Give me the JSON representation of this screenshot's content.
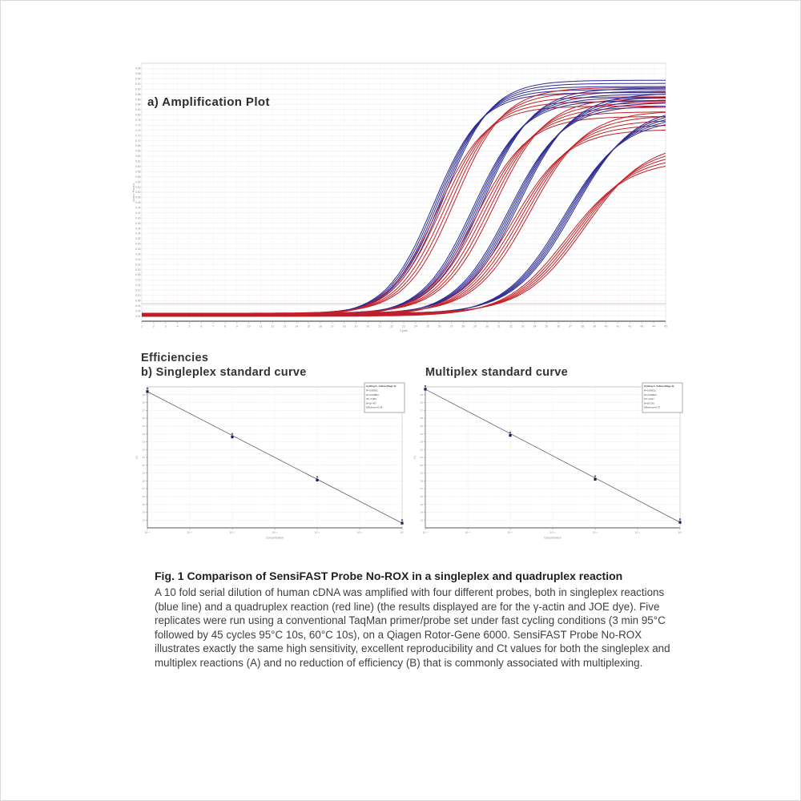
{
  "figure": {
    "caption": {
      "title": "Fig. 1 Comparison of SensiFAST Probe No-ROX in a singleplex and quadruplex reaction",
      "body": "A 10 fold serial dilution of human cDNA was amplified with four different probes, both in singleplex reactions (blue line) and a quadruplex reaction (red line) (the results displayed are for the γ-actin and JOE dye).  Five replicates were run using a conventional TaqMan primer/probe set under fast cycling conditions (3 min 95°C followed by 45 cycles 95°C 10s, 60°C 10s), on a Qiagen Rotor-Gene 6000. SensiFAST Probe No-ROX illustrates exactly the same high sensitivity, excellent reproducibility and Ct values for both the singleplex and multiplex reactions (A) and no reduction of efficiency (B) that is commonly associated with multiplexing."
    },
    "efficiencies_heading": "Efficiencies"
  },
  "colors": {
    "singleplex_blue": "#2b2b93",
    "multiplex_red": "#c42026",
    "threshold_line": "#e2a9a9",
    "grid_light": "#ebedf2",
    "grid_std": "#dcdcdc",
    "axis_dark": "#8a8a8a",
    "point_marker": "#1c1c55"
  },
  "chart_data": [
    {
      "type": "line",
      "title": "a) Amplification Plot",
      "xlabel": "Cycle",
      "ylabel": "Norm. Fluoro.",
      "xlim": [
        1,
        45
      ],
      "ylim": [
        0,
        1
      ],
      "grid": true,
      "x_tick_step": 1,
      "y_ticks": {
        "min": 0.02,
        "max": 0.98,
        "step": 0.02,
        "decimals": 2
      },
      "baseline_value": 0.025,
      "threshold_value": 0.068,
      "replicates_per_cluster": 5,
      "legend_note": "blue = singleplex, red = quadruplex (multiplex)",
      "clusters": [
        {
          "midpoint_cycle": 26.3,
          "slope_k": 0.5,
          "plateau_blue": 0.91,
          "plateau_red": 0.87
        },
        {
          "midpoint_cycle": 29.6,
          "slope_k": 0.47,
          "plateau_blue": 0.88,
          "plateau_red": 0.83
        },
        {
          "midpoint_cycle": 32.6,
          "slope_k": 0.44,
          "plateau_blue": 0.86,
          "plateau_red": 0.78
        },
        {
          "midpoint_cycle": 37.2,
          "slope_k": 0.4,
          "plateau_blue": 0.81,
          "plateau_red": 0.66
        }
      ]
    },
    {
      "type": "scatter",
      "title": "b) Singleplex standard curve",
      "xlabel": "Concentration",
      "ylabel": "Ct",
      "x_tick_labels": [
        "10⁻⁶",
        "10⁻⁵",
        "10⁻⁴",
        "10⁻³",
        "10⁻²",
        "10⁻¹",
        "10⁰"
      ],
      "x_decades": [
        -6,
        0
      ],
      "ylim": [
        12,
        30
      ],
      "y_tick_step": 1,
      "grid": true,
      "points": [
        {
          "log_conc": -6,
          "ct": 29.4
        },
        {
          "log_conc": -4,
          "ct": 23.6
        },
        {
          "log_conc": -2,
          "ct": 18.1
        },
        {
          "log_conc": 0,
          "ct": 12.6
        }
      ],
      "legend": {
        "header": "Cycling A. Yellow (Page 1):",
        "lines": [
          "R=0.99931",
          "R²=0.99863",
          "M=-3.383",
          "B=18.497",
          "Efficiency=0.98"
        ],
        "position": "top-right"
      }
    },
    {
      "type": "scatter",
      "title": "Multiplex standard curve",
      "xlabel": "Concentration",
      "ylabel": "Ct",
      "x_tick_labels": [
        "10⁻⁶",
        "10⁻⁵",
        "10⁻⁴",
        "10⁻³",
        "10⁻²",
        "10⁻¹",
        "10⁰"
      ],
      "x_decades": [
        -6,
        0
      ],
      "ylim": [
        12,
        30
      ],
      "y_tick_step": 1,
      "grid": true,
      "points": [
        {
          "log_conc": -6,
          "ct": 29.7
        },
        {
          "log_conc": -4,
          "ct": 23.8
        },
        {
          "log_conc": -2,
          "ct": 18.2
        },
        {
          "log_conc": 0,
          "ct": 12.7
        }
      ],
      "legend": {
        "header": "Cycling A. Yellow (Page 1):",
        "lines": [
          "R=0.99912",
          "R²=0.99824",
          "M=-3.407",
          "B=18.230",
          "Efficiency=0.97"
        ],
        "position": "top-right"
      }
    }
  ]
}
